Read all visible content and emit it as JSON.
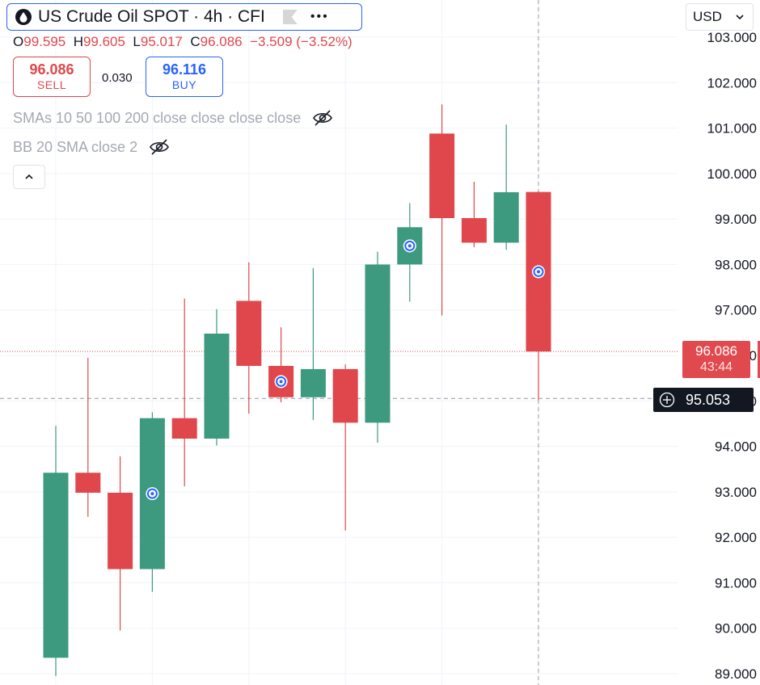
{
  "header": {
    "symbol_title": "US Crude Oil SPOT · 4h · CFI",
    "currency": "USD"
  },
  "ohlc": {
    "o_label": "O",
    "o": "99.595",
    "h_label": "H",
    "h": "99.605",
    "l_label": "L",
    "l": "95.017",
    "c_label": "C",
    "c": "96.086",
    "change": "−3.509 (−3.52%)"
  },
  "trade": {
    "sell_price": "96.086",
    "sell_label": "SELL",
    "spread": "0.030",
    "buy_price": "96.116",
    "buy_label": "BUY"
  },
  "indicators": {
    "smas": "SMAs 10 50 100 200 close close close close",
    "bb": "BB 20 SMA close 2"
  },
  "price_tag": {
    "price": "96.086",
    "countdown": "43:44"
  },
  "crosshair": {
    "price": "95.053"
  },
  "colors": {
    "up": "#3d9a7f",
    "down": "#e0474c",
    "accent": "#2962ff"
  },
  "icons": [
    "drop-icon",
    "flag-icon",
    "more-icon",
    "eye-off-icon",
    "chevron-up-icon",
    "chevron-down-icon",
    "crosshair-plus-icon",
    "event-marker-icon"
  ],
  "chart_data": {
    "type": "candlestick",
    "timeframe": "4h",
    "y_ticks": [
      "103.000",
      "102.000",
      "101.000",
      "100.000",
      "99.000",
      "98.000",
      "97.000",
      "96.000",
      "95.000",
      "94.000",
      "93.000",
      "92.000",
      "91.000",
      "90.000",
      "89.000"
    ],
    "ylim": [
      88.8,
      103.3
    ],
    "grid": true,
    "candles": [
      {
        "open": 89.35,
        "high": 94.45,
        "low": 88.95,
        "close": 93.42
      },
      {
        "open": 93.42,
        "high": 95.95,
        "low": 92.45,
        "close": 92.98
      },
      {
        "open": 92.98,
        "high": 93.78,
        "low": 89.95,
        "close": 91.3
      },
      {
        "open": 91.3,
        "high": 94.75,
        "low": 90.8,
        "close": 94.62,
        "marker": true
      },
      {
        "open": 94.62,
        "high": 97.25,
        "low": 93.12,
        "close": 94.17
      },
      {
        "open": 94.17,
        "high": 97.02,
        "low": 94.02,
        "close": 96.48
      },
      {
        "open": 97.2,
        "high": 98.05,
        "low": 94.72,
        "close": 95.77
      },
      {
        "open": 95.77,
        "high": 96.62,
        "low": 94.97,
        "close": 95.08,
        "marker": true
      },
      {
        "open": 95.08,
        "high": 97.92,
        "low": 94.58,
        "close": 95.7
      },
      {
        "open": 95.7,
        "high": 95.8,
        "low": 92.15,
        "close": 94.52
      },
      {
        "open": 94.52,
        "high": 98.28,
        "low": 94.08,
        "close": 98.0
      },
      {
        "open": 98.0,
        "high": 99.35,
        "low": 97.18,
        "close": 98.82,
        "marker": true
      },
      {
        "open": 100.88,
        "high": 101.52,
        "low": 96.88,
        "close": 99.02
      },
      {
        "open": 99.02,
        "high": 99.82,
        "low": 98.38,
        "close": 98.48
      },
      {
        "open": 98.48,
        "high": 101.08,
        "low": 98.32,
        "close": 99.59
      },
      {
        "open": 99.595,
        "high": 99.605,
        "low": 95.017,
        "close": 96.086,
        "marker": true
      }
    ],
    "last_price": 96.086,
    "crosshair_price": 95.053
  }
}
